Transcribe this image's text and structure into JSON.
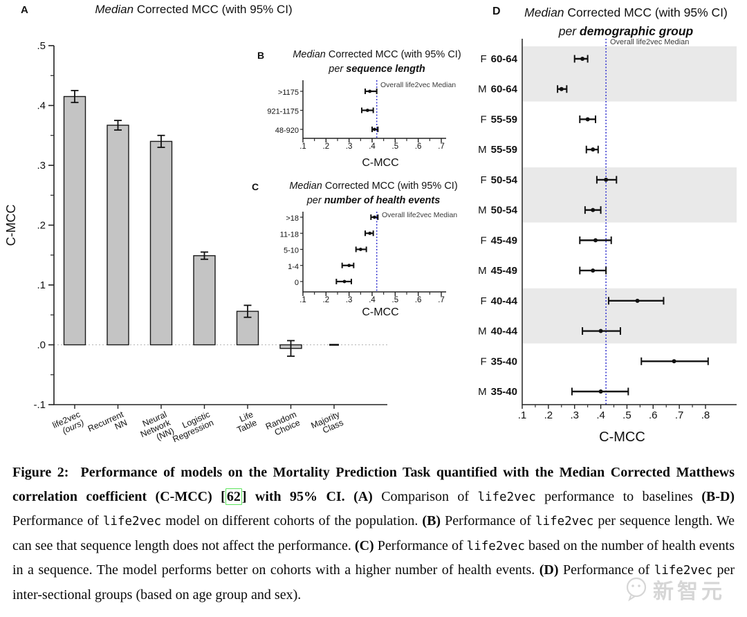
{
  "colors": {
    "bar_fill": "#c4c4c4",
    "band": "#e9e9e9",
    "ref_line": "#3b3bd1",
    "axis": "#222222",
    "cite_border": "#5be35b"
  },
  "chart_data": [
    {
      "id": "A",
      "panel_label": "A",
      "type": "bar",
      "title": {
        "italic": "Median",
        "rest": " Corrected MCC (with 95% CI)"
      },
      "ylabel": "C-MCC",
      "ylim": [
        -0.1,
        0.5
      ],
      "ytick_vals": [
        0.5,
        0.4,
        0.3,
        0.2,
        0.1,
        0.0,
        -0.1
      ],
      "ytick_labels": [
        ".5",
        ".4",
        ".3",
        ".2",
        ".1",
        ".0",
        "-.1"
      ],
      "categories": [
        {
          "lines": [
            "life2vec",
            "(ours)"
          ],
          "italic_line": 1
        },
        {
          "lines": [
            "Recurrent",
            "NN"
          ]
        },
        {
          "lines": [
            "Neural",
            "Network",
            "(NN)"
          ]
        },
        {
          "lines": [
            "Logistic",
            "Regression"
          ]
        },
        {
          "lines": [
            "Life",
            "Table"
          ]
        },
        {
          "lines": [
            "Random",
            "Choice"
          ]
        },
        {
          "lines": [
            "Majority",
            "Class"
          ]
        }
      ],
      "values": [
        0.415,
        0.367,
        0.34,
        0.149,
        0.056,
        -0.006,
        0.0
      ],
      "errors": [
        0.01,
        0.008,
        0.01,
        0.006,
        0.01,
        0.013,
        0.0
      ],
      "grid": false,
      "legend": "none"
    },
    {
      "id": "B",
      "panel_label": "B",
      "type": "forest",
      "title": {
        "italic": "Median",
        "rest": " Corrected MCC (with 95% CI)"
      },
      "subtitle": {
        "italic": "per ",
        "bold_italic": "sequence length"
      },
      "xlabel": "C-MCC",
      "xlim": [
        0.1,
        0.7
      ],
      "xtick_vals": [
        0.1,
        0.2,
        0.3,
        0.4,
        0.5,
        0.6,
        0.7
      ],
      "xtick_labels": [
        ".1",
        ".2",
        ".3",
        ".4",
        ".5",
        ".6",
        ".7"
      ],
      "categories": [
        ">1175",
        "921-1175",
        "48-920"
      ],
      "values": [
        0.39,
        0.38,
        0.41
      ],
      "ci_low": [
        0.37,
        0.355,
        0.4
      ],
      "ci_high": [
        0.42,
        0.405,
        0.425
      ],
      "ref_value": 0.42,
      "ref_label": "Overall life2vec Median"
    },
    {
      "id": "C",
      "panel_label": "C",
      "type": "forest",
      "title": {
        "italic": "Median",
        "rest": " Corrected MCC (with 95% CI)"
      },
      "subtitle": {
        "italic": "per ",
        "bold_italic": "number of health events"
      },
      "xlabel": "C-MCC",
      "xlim": [
        0.1,
        0.7
      ],
      "xtick_vals": [
        0.1,
        0.2,
        0.3,
        0.4,
        0.5,
        0.6,
        0.7
      ],
      "xtick_labels": [
        ".1",
        ".2",
        ".3",
        ".4",
        ".5",
        ".6",
        ".7"
      ],
      "categories": [
        ">18",
        "11-18",
        "5-10",
        "1-4",
        "0"
      ],
      "values": [
        0.41,
        0.39,
        0.35,
        0.3,
        0.28
      ],
      "ci_low": [
        0.395,
        0.37,
        0.33,
        0.27,
        0.245
      ],
      "ci_high": [
        0.425,
        0.405,
        0.375,
        0.32,
        0.31
      ],
      "ref_value": 0.42,
      "ref_label": "Overall life2vec Median"
    },
    {
      "id": "D",
      "panel_label": "D",
      "type": "forest",
      "title": {
        "italic": "Median",
        "rest": " Corrected MCC (with 95% CI)"
      },
      "subtitle": {
        "italic": "per ",
        "bold_italic": "demographic group"
      },
      "xlabel": "C-MCC",
      "xlim": [
        0.1,
        0.8
      ],
      "xtick_vals": [
        0.1,
        0.2,
        0.3,
        0.4,
        0.5,
        0.6,
        0.7,
        0.8
      ],
      "xtick_labels": [
        ".1",
        ".2",
        ".3",
        ".4",
        ".5",
        ".6",
        ".7",
        ".8"
      ],
      "categories": [
        {
          "sex": "F",
          "age": "60-64"
        },
        {
          "sex": "M",
          "age": "60-64"
        },
        {
          "sex": "F",
          "age": "55-59"
        },
        {
          "sex": "M",
          "age": "55-59"
        },
        {
          "sex": "F",
          "age": "50-54"
        },
        {
          "sex": "M",
          "age": "50-54"
        },
        {
          "sex": "F",
          "age": "45-49"
        },
        {
          "sex": "M",
          "age": "45-49"
        },
        {
          "sex": "F",
          "age": "40-44"
        },
        {
          "sex": "M",
          "age": "40-44"
        },
        {
          "sex": "F",
          "age": "35-40"
        },
        {
          "sex": "M",
          "age": "35-40"
        }
      ],
      "values": [
        0.33,
        0.25,
        0.35,
        0.37,
        0.42,
        0.37,
        0.38,
        0.37,
        0.54,
        0.4,
        0.68,
        0.4
      ],
      "ci_low": [
        0.3,
        0.235,
        0.32,
        0.345,
        0.385,
        0.34,
        0.32,
        0.32,
        0.43,
        0.33,
        0.555,
        0.29
      ],
      "ci_high": [
        0.35,
        0.27,
        0.38,
        0.39,
        0.46,
        0.4,
        0.44,
        0.42,
        0.64,
        0.475,
        0.81,
        0.505
      ],
      "ref_value": 0.42,
      "ref_label": "Overall life2vec Median",
      "shaded_pairs": [
        [
          0,
          1
        ],
        [
          4,
          5
        ],
        [
          8,
          9
        ]
      ]
    }
  ],
  "caption": {
    "segments": [
      {
        "t": "Figure 2:  Performance of models on the Mortality Prediction Task quantified with the Median Corrected Matthews correlation coefficient (C-MCC) ",
        "s": "b"
      },
      {
        "t": "[",
        "s": "b"
      },
      {
        "t": "62",
        "s": "cite"
      },
      {
        "t": "]",
        "s": "b"
      },
      {
        "t": " with 95% CI. ",
        "s": "b"
      },
      {
        "t": "(A)",
        "s": "b"
      },
      {
        "t": " Comparison of ",
        "s": ""
      },
      {
        "t": "life2vec",
        "s": "m"
      },
      {
        "t": " performance to baselines ",
        "s": ""
      },
      {
        "t": "(B-D)",
        "s": "b"
      },
      {
        "t": " Performance of ",
        "s": ""
      },
      {
        "t": "life2vec",
        "s": "m"
      },
      {
        "t": " model on different cohorts of the population. ",
        "s": ""
      },
      {
        "t": "(B)",
        "s": "b"
      },
      {
        "t": " Performance of ",
        "s": ""
      },
      {
        "t": "life2vec",
        "s": "m"
      },
      {
        "t": " per sequence length. We can see that sequence length does not affect the performance. ",
        "s": ""
      },
      {
        "t": "(C)",
        "s": "b"
      },
      {
        "t": " Performance of ",
        "s": ""
      },
      {
        "t": "life2vec",
        "s": "m"
      },
      {
        "t": " based on the number of health events in a sequence. The model performs better on cohorts with a higher number of health events. ",
        "s": ""
      },
      {
        "t": "(D)",
        "s": "b"
      },
      {
        "t": " Performance of ",
        "s": ""
      },
      {
        "t": "life2vec",
        "s": "m"
      },
      {
        "t": " per inter-sectional groups (based on age group and sex).",
        "s": ""
      }
    ]
  },
  "watermark": {
    "text": "新智元"
  }
}
